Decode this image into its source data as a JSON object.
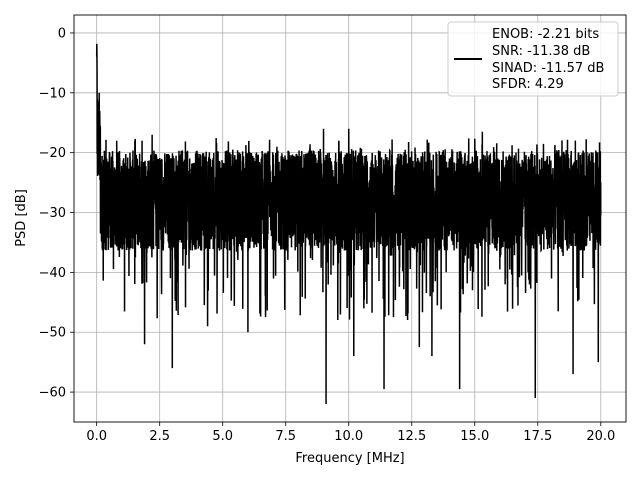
{
  "chart_data": {
    "type": "line",
    "xlabel": "Frequency [MHz]",
    "ylabel": "PSD [dB]",
    "xlim": [
      -0.9,
      21.0
    ],
    "ylim": [
      -65.0,
      3.0
    ],
    "xticks": [
      0.0,
      2.5,
      5.0,
      7.5,
      10.0,
      12.5,
      15.0,
      17.5,
      20.0
    ],
    "xtick_labels": [
      "0.0",
      "2.5",
      "5.0",
      "7.5",
      "10.0",
      "12.5",
      "15.0",
      "17.5",
      "20.0"
    ],
    "yticks": [
      0,
      -10,
      -20,
      -30,
      -40,
      -50,
      -60
    ],
    "ytick_labels": [
      "0",
      "−10",
      "−20",
      "−30",
      "−40",
      "−50",
      "−60"
    ],
    "grid": true,
    "legend_position": "top-right",
    "legend": [
      "ENOB: -2.21 bits",
      "SNR: -11.38 dB",
      "SINAD: -11.57 dB",
      "SFDR: 4.29"
    ],
    "series_color": "#000000",
    "series": [
      {
        "x_start": 0.0,
        "x_end": 20.0,
        "peak_value": 0.0,
        "noise_band_upper": -20.0,
        "noise_band_lower": -36.0,
        "spurs_high": [
          [
            9.0,
            -16.0
          ],
          [
            10.0,
            -16.0
          ],
          [
            15.3,
            -16.5
          ],
          [
            2.2,
            -17.0
          ],
          [
            1.8,
            -18.0
          ]
        ],
        "spurs_low": [
          [
            3.0,
            -56.0
          ],
          [
            9.1,
            -62.0
          ],
          [
            10.2,
            -54.0
          ],
          [
            11.4,
            -59.5
          ],
          [
            14.4,
            -59.5
          ],
          [
            17.4,
            -61.0
          ],
          [
            18.9,
            -57.0
          ],
          [
            19.9,
            -55.0
          ],
          [
            1.9,
            -52.0
          ],
          [
            4.4,
            -49.0
          ],
          [
            6.0,
            -50.0
          ],
          [
            12.8,
            -52.5
          ],
          [
            13.3,
            -54.0
          ]
        ]
      }
    ]
  }
}
